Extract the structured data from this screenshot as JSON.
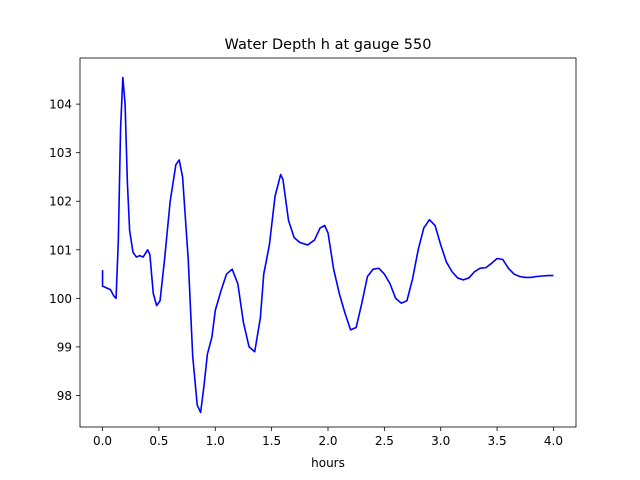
{
  "chart_data": {
    "type": "line",
    "title": "Water Depth h at gauge 550",
    "xlabel": "hours",
    "ylabel": "",
    "xlim": [
      -0.2,
      4.2
    ],
    "ylim": [
      97.35,
      104.95
    ],
    "x_ticks": [
      0.0,
      0.5,
      1.0,
      1.5,
      2.0,
      2.5,
      3.0,
      3.5,
      4.0
    ],
    "x_tick_labels": [
      "0.0",
      "0.5",
      "1.0",
      "1.5",
      "2.0",
      "2.5",
      "3.0",
      "3.5",
      "4.0"
    ],
    "y_ticks": [
      98,
      99,
      100,
      101,
      102,
      103,
      104
    ],
    "y_tick_labels": [
      "98",
      "99",
      "100",
      "101",
      "102",
      "103",
      "104"
    ],
    "grid": false,
    "legend": "none",
    "series": [
      {
        "color": "#0000ff",
        "points": [
          [
            0.0,
            100.58
          ],
          [
            0.0,
            100.25
          ],
          [
            0.03,
            100.22
          ],
          [
            0.07,
            100.18
          ],
          [
            0.1,
            100.05
          ],
          [
            0.12,
            100.0
          ],
          [
            0.14,
            101.2
          ],
          [
            0.16,
            103.5
          ],
          [
            0.18,
            104.55
          ],
          [
            0.2,
            104.0
          ],
          [
            0.22,
            102.4
          ],
          [
            0.24,
            101.4
          ],
          [
            0.27,
            100.95
          ],
          [
            0.3,
            100.85
          ],
          [
            0.33,
            100.88
          ],
          [
            0.36,
            100.85
          ],
          [
            0.4,
            101.0
          ],
          [
            0.42,
            100.9
          ],
          [
            0.45,
            100.1
          ],
          [
            0.48,
            99.85
          ],
          [
            0.51,
            99.95
          ],
          [
            0.55,
            100.8
          ],
          [
            0.6,
            102.0
          ],
          [
            0.65,
            102.75
          ],
          [
            0.68,
            102.85
          ],
          [
            0.71,
            102.5
          ],
          [
            0.76,
            100.8
          ],
          [
            0.8,
            98.8
          ],
          [
            0.84,
            97.8
          ],
          [
            0.87,
            97.65
          ],
          [
            0.9,
            98.2
          ],
          [
            0.93,
            98.85
          ],
          [
            0.97,
            99.2
          ],
          [
            1.0,
            99.75
          ],
          [
            1.05,
            100.15
          ],
          [
            1.1,
            100.5
          ],
          [
            1.15,
            100.6
          ],
          [
            1.2,
            100.3
          ],
          [
            1.25,
            99.5
          ],
          [
            1.3,
            99.0
          ],
          [
            1.35,
            98.9
          ],
          [
            1.4,
            99.6
          ],
          [
            1.43,
            100.5
          ],
          [
            1.48,
            101.1
          ],
          [
            1.53,
            102.1
          ],
          [
            1.58,
            102.55
          ],
          [
            1.6,
            102.45
          ],
          [
            1.65,
            101.6
          ],
          [
            1.7,
            101.25
          ],
          [
            1.75,
            101.15
          ],
          [
            1.82,
            101.1
          ],
          [
            1.88,
            101.2
          ],
          [
            1.93,
            101.45
          ],
          [
            1.97,
            101.5
          ],
          [
            2.0,
            101.35
          ],
          [
            2.05,
            100.6
          ],
          [
            2.1,
            100.1
          ],
          [
            2.15,
            99.7
          ],
          [
            2.2,
            99.35
          ],
          [
            2.25,
            99.4
          ],
          [
            2.3,
            99.9
          ],
          [
            2.35,
            100.45
          ],
          [
            2.4,
            100.6
          ],
          [
            2.45,
            100.62
          ],
          [
            2.5,
            100.5
          ],
          [
            2.55,
            100.3
          ],
          [
            2.6,
            100.0
          ],
          [
            2.65,
            99.9
          ],
          [
            2.7,
            99.95
          ],
          [
            2.75,
            100.4
          ],
          [
            2.8,
            101.0
          ],
          [
            2.85,
            101.45
          ],
          [
            2.9,
            101.62
          ],
          [
            2.95,
            101.5
          ],
          [
            3.0,
            101.1
          ],
          [
            3.05,
            100.75
          ],
          [
            3.1,
            100.55
          ],
          [
            3.15,
            100.42
          ],
          [
            3.2,
            100.38
          ],
          [
            3.25,
            100.42
          ],
          [
            3.3,
            100.55
          ],
          [
            3.35,
            100.62
          ],
          [
            3.4,
            100.63
          ],
          [
            3.45,
            100.72
          ],
          [
            3.5,
            100.82
          ],
          [
            3.55,
            100.8
          ],
          [
            3.6,
            100.62
          ],
          [
            3.65,
            100.5
          ],
          [
            3.7,
            100.45
          ],
          [
            3.75,
            100.43
          ],
          [
            3.8,
            100.43
          ],
          [
            3.85,
            100.45
          ],
          [
            3.9,
            100.46
          ],
          [
            3.95,
            100.47
          ],
          [
            4.0,
            100.47
          ]
        ]
      }
    ]
  }
}
